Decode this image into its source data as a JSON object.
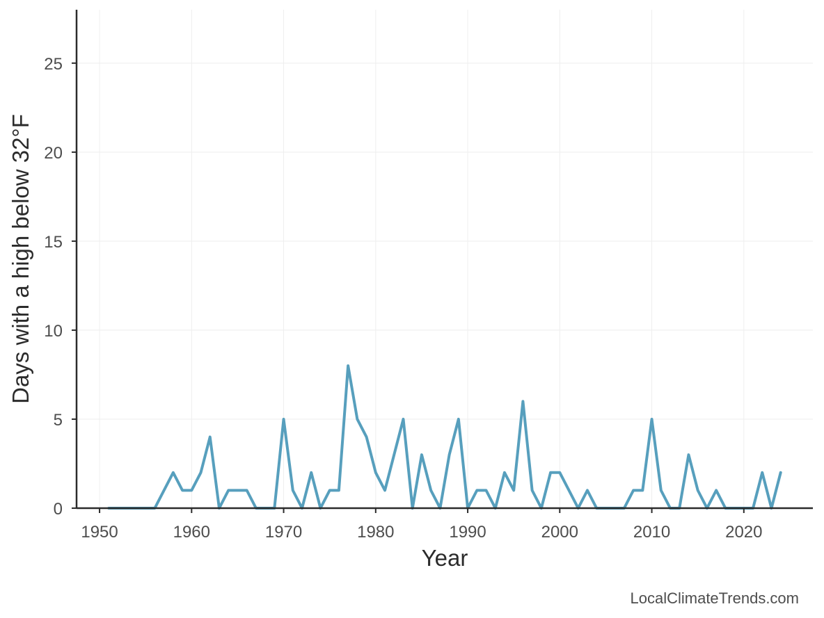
{
  "chart_data": {
    "type": "line",
    "title": "",
    "xlabel": "Year",
    "ylabel": "Days with a high below 32°F",
    "xlim": [
      1947.5,
      2027.5
    ],
    "ylim": [
      0,
      28
    ],
    "xticks": [
      1950,
      1960,
      1970,
      1980,
      1990,
      2000,
      2010,
      2020
    ],
    "yticks": [
      0,
      5,
      10,
      15,
      20,
      25
    ],
    "grid": true,
    "series": [
      {
        "name": "Days with a high below 32°F",
        "color": "#579fbd",
        "x": [
          1951,
          1952,
          1953,
          1954,
          1955,
          1956,
          1957,
          1958,
          1959,
          1960,
          1961,
          1962,
          1963,
          1964,
          1965,
          1966,
          1967,
          1968,
          1969,
          1970,
          1971,
          1972,
          1973,
          1974,
          1975,
          1976,
          1977,
          1978,
          1979,
          1980,
          1981,
          1982,
          1983,
          1984,
          1985,
          1986,
          1987,
          1988,
          1989,
          1990,
          1991,
          1992,
          1993,
          1994,
          1995,
          1996,
          1997,
          1998,
          1999,
          2000,
          2001,
          2002,
          2003,
          2004,
          2005,
          2006,
          2007,
          2008,
          2009,
          2010,
          2011,
          2012,
          2013,
          2014,
          2015,
          2016,
          2017,
          2018,
          2019,
          2020,
          2021,
          2022,
          2023,
          2024
        ],
        "y": [
          0,
          0,
          0,
          0,
          0,
          0,
          1,
          2,
          1,
          1,
          2,
          4,
          0,
          1,
          1,
          1,
          0,
          0,
          0,
          5,
          1,
          0,
          2,
          0,
          1,
          1,
          8,
          5,
          4,
          2,
          1,
          3,
          5,
          0,
          3,
          1,
          0,
          3,
          5,
          0,
          1,
          1,
          0,
          2,
          1,
          6,
          1,
          0,
          2,
          2,
          1,
          0,
          1,
          0,
          0,
          0,
          0,
          1,
          1,
          5,
          1,
          0,
          0,
          3,
          1,
          0,
          1,
          0,
          0,
          0,
          0,
          2,
          0,
          2
        ]
      }
    ]
  },
  "credit": "LocalClimateTrends.com"
}
